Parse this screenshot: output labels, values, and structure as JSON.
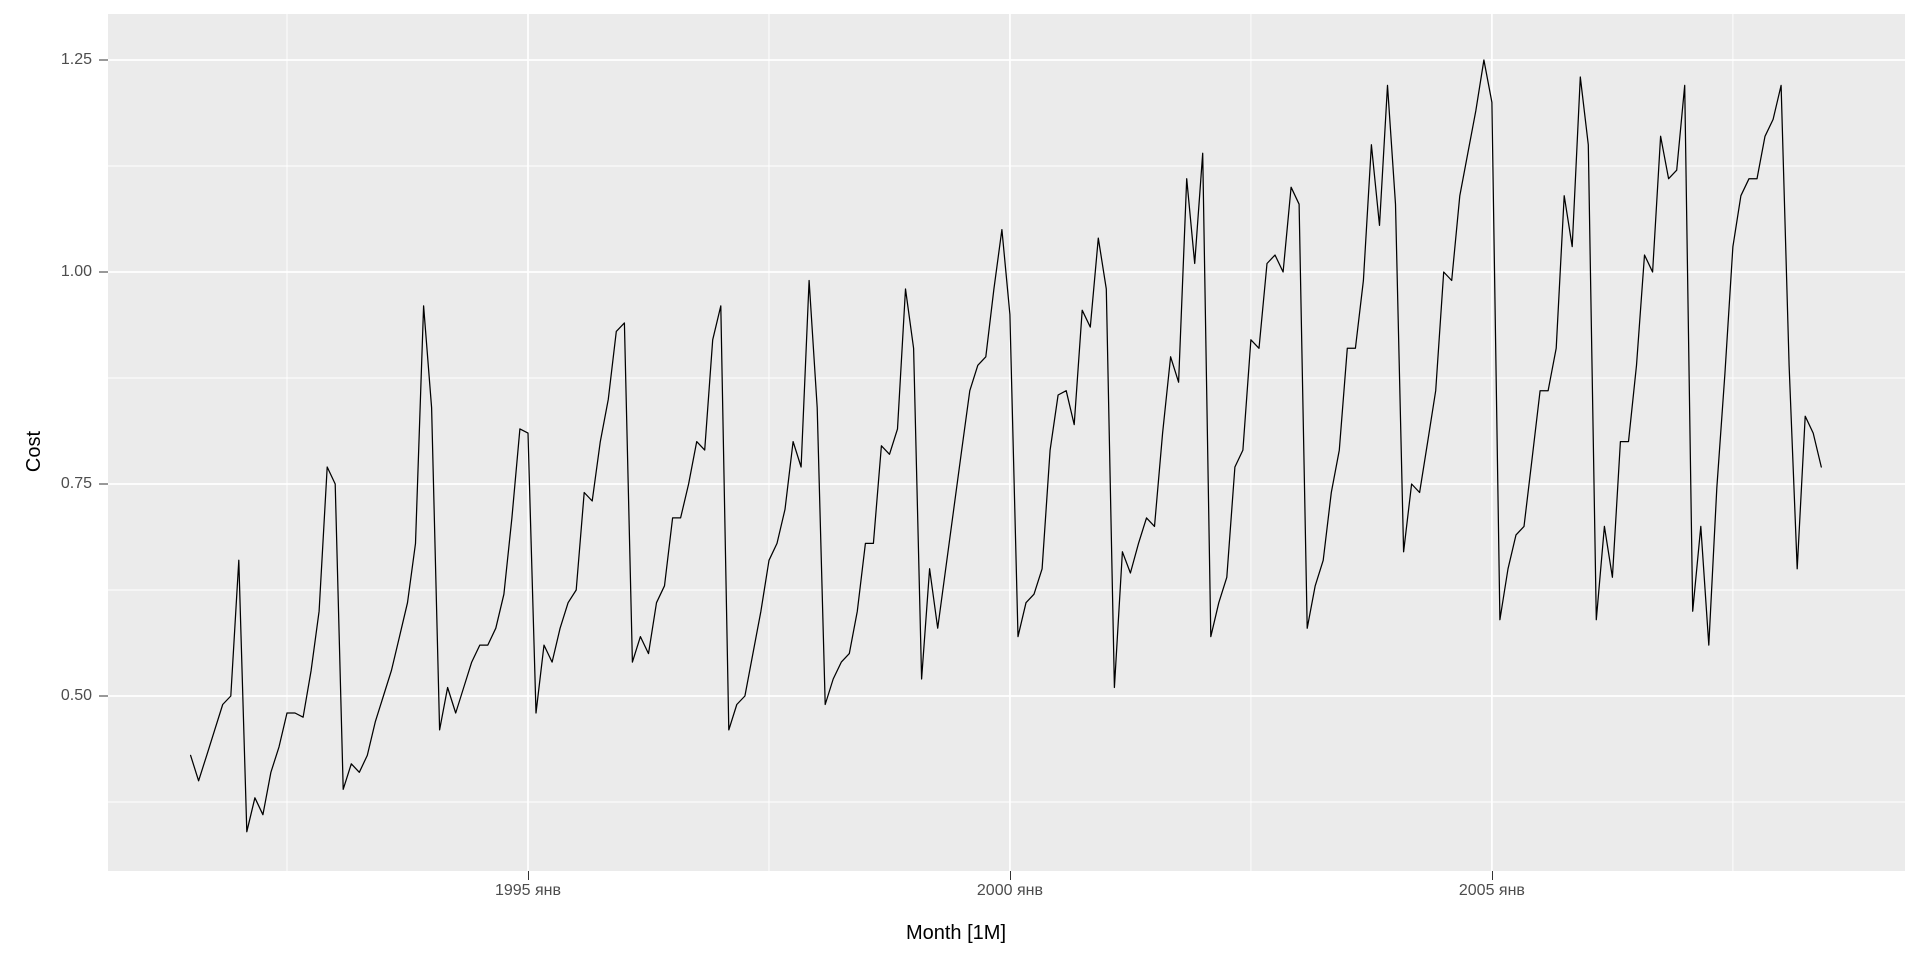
{
  "figure": {
    "kind": "ggplot-style time series line chart",
    "panel_bg": "#EBEBEB",
    "grid_color": "#FFFFFF",
    "series_color": "#000000",
    "tick_label_color": "#4D4D4D",
    "axis_title_color": "#000000",
    "tick_mark_color": "#333333"
  },
  "chart_data": {
    "type": "line",
    "title": "",
    "xlabel": "Month [1M]",
    "ylabel": "Cost",
    "x_start_month": "1991-07",
    "x_frequency": "monthly",
    "x_major_ticks": [
      {
        "label": "1995 янв",
        "month_index": 42
      },
      {
        "label": "2000 янв",
        "month_index": 102
      },
      {
        "label": "2005 янв",
        "month_index": 162
      }
    ],
    "x_minor_tick_month_indices": [
      12,
      72,
      132,
      192
    ],
    "y_major_ticks": [
      {
        "label": "0.50",
        "value": 0.5
      },
      {
        "label": "0.75",
        "value": 0.75
      },
      {
        "label": "1.00",
        "value": 1.0
      },
      {
        "label": "1.25",
        "value": 1.25
      }
    ],
    "y_minor_tick_values": [
      0.375,
      0.625,
      0.875,
      1.125
    ],
    "ylim": [
      0.288,
      1.304
    ],
    "grid": "major-and-minor",
    "legend": "none",
    "values": [
      0.43,
      0.4,
      0.43,
      0.46,
      0.49,
      0.5,
      0.66,
      0.34,
      0.38,
      0.36,
      0.41,
      0.44,
      0.48,
      0.48,
      0.475,
      0.53,
      0.6,
      0.77,
      0.75,
      0.39,
      0.42,
      0.41,
      0.43,
      0.47,
      0.5,
      0.53,
      0.57,
      0.61,
      0.68,
      0.96,
      0.84,
      0.46,
      0.51,
      0.48,
      0.51,
      0.54,
      0.56,
      0.56,
      0.58,
      0.62,
      0.71,
      0.815,
      0.81,
      0.48,
      0.56,
      0.54,
      0.58,
      0.61,
      0.625,
      0.74,
      0.73,
      0.8,
      0.85,
      0.93,
      0.94,
      0.54,
      0.57,
      0.55,
      0.61,
      0.63,
      0.71,
      0.71,
      0.75,
      0.8,
      0.79,
      0.92,
      0.96,
      0.46,
      0.49,
      0.5,
      0.55,
      0.6,
      0.66,
      0.68,
      0.72,
      0.8,
      0.77,
      0.99,
      0.84,
      0.49,
      0.52,
      0.54,
      0.55,
      0.6,
      0.68,
      0.68,
      0.795,
      0.785,
      0.815,
      0.98,
      0.91,
      0.52,
      0.65,
      0.58,
      0.65,
      0.72,
      0.79,
      0.86,
      0.89,
      0.9,
      0.98,
      1.05,
      0.95,
      0.57,
      0.61,
      0.62,
      0.65,
      0.79,
      0.855,
      0.86,
      0.82,
      0.955,
      0.935,
      1.04,
      0.98,
      0.51,
      0.67,
      0.645,
      0.68,
      0.71,
      0.7,
      0.81,
      0.9,
      0.87,
      1.11,
      1.01,
      1.14,
      0.57,
      0.61,
      0.64,
      0.77,
      0.79,
      0.92,
      0.91,
      1.01,
      1.02,
      1.0,
      1.1,
      1.08,
      0.58,
      0.63,
      0.66,
      0.74,
      0.79,
      0.91,
      0.91,
      0.99,
      1.15,
      1.055,
      1.22,
      1.08,
      0.67,
      0.75,
      0.74,
      0.8,
      0.86,
      1.0,
      0.99,
      1.09,
      1.14,
      1.19,
      1.25,
      1.2,
      0.59,
      0.65,
      0.69,
      0.7,
      0.78,
      0.86,
      0.86,
      0.91,
      1.09,
      1.03,
      1.23,
      1.15,
      0.59,
      0.7,
      0.64,
      0.8,
      0.8,
      0.89,
      1.02,
      1.0,
      1.16,
      1.11,
      1.12,
      1.22,
      0.6,
      0.7,
      0.56,
      0.745,
      0.88,
      1.03,
      1.09,
      1.11,
      1.11,
      1.16,
      1.18,
      1.22,
      0.89,
      0.65,
      0.83,
      0.81,
      0.77
    ]
  }
}
